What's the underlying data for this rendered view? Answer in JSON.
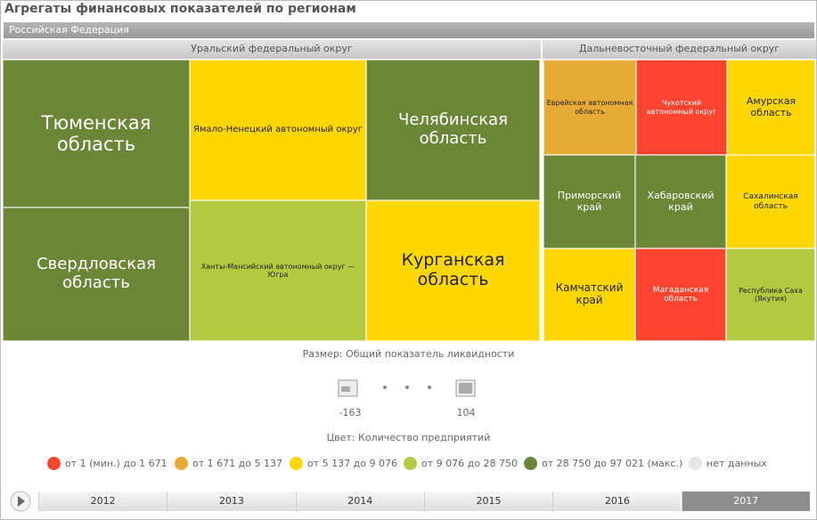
{
  "header": {
    "title": "Агрегаты финансовых показателей по регионам"
  },
  "root": "Российская Федерация",
  "groups": [
    {
      "title": "Уральский федеральный округ",
      "tiles": [
        {
          "label": "Тюменская область",
          "color": "#6b8636"
        },
        {
          "label": "Свердловская область",
          "color": "#6b8636"
        },
        {
          "label": "Ямало-Ненецкий автономный округ",
          "color": "#ffd700"
        },
        {
          "label": "Ханты-Мансийский автономный округ — Югра",
          "color": "#b2c941"
        },
        {
          "label": "Челябинская область",
          "color": "#6b8636"
        },
        {
          "label": "Курганская область",
          "color": "#ffd700"
        }
      ]
    },
    {
      "title": "Дальневосточный федеральный округ",
      "tiles": [
        {
          "label": "Еврейская автономная область",
          "color": "#e8ab35"
        },
        {
          "label": "Чукотский автономный округ",
          "color": "#ff4530"
        },
        {
          "label": "Амурская область",
          "color": "#ffd700"
        },
        {
          "label": "Приморский край",
          "color": "#6b8636"
        },
        {
          "label": "Хабаровский край",
          "color": "#6b8636"
        },
        {
          "label": "Сахалинская область",
          "color": "#ffd700"
        },
        {
          "label": "Камчатский край",
          "color": "#ffd700"
        },
        {
          "label": "Магаданская область",
          "color": "#ff4530"
        },
        {
          "label": "Республика Саха (Якутия)",
          "color": "#b2c941"
        }
      ]
    }
  ],
  "size_legend": {
    "title": "Размер: Общий показатель ликвидности",
    "min": "-163",
    "max": "104"
  },
  "color_legend": {
    "title": "Цвет: Количество предприятий",
    "items": [
      {
        "label": "от 1 (мин.) до 1 671",
        "color": "#ff4530"
      },
      {
        "label": "от 1 671 до 5 137",
        "color": "#e8ab35"
      },
      {
        "label": "от 5 137 до 9 076",
        "color": "#ffd700"
      },
      {
        "label": "от 9 076 до 28 750",
        "color": "#b2c941"
      },
      {
        "label": "от 28 750 до 97 021 (макс.)",
        "color": "#6b8636"
      },
      {
        "label": "нет данных",
        "color": "#e6e6e6"
      }
    ]
  },
  "timeline": {
    "years": [
      "2012",
      "2013",
      "2014",
      "2015",
      "2016",
      "2017"
    ],
    "selected": 5
  }
}
